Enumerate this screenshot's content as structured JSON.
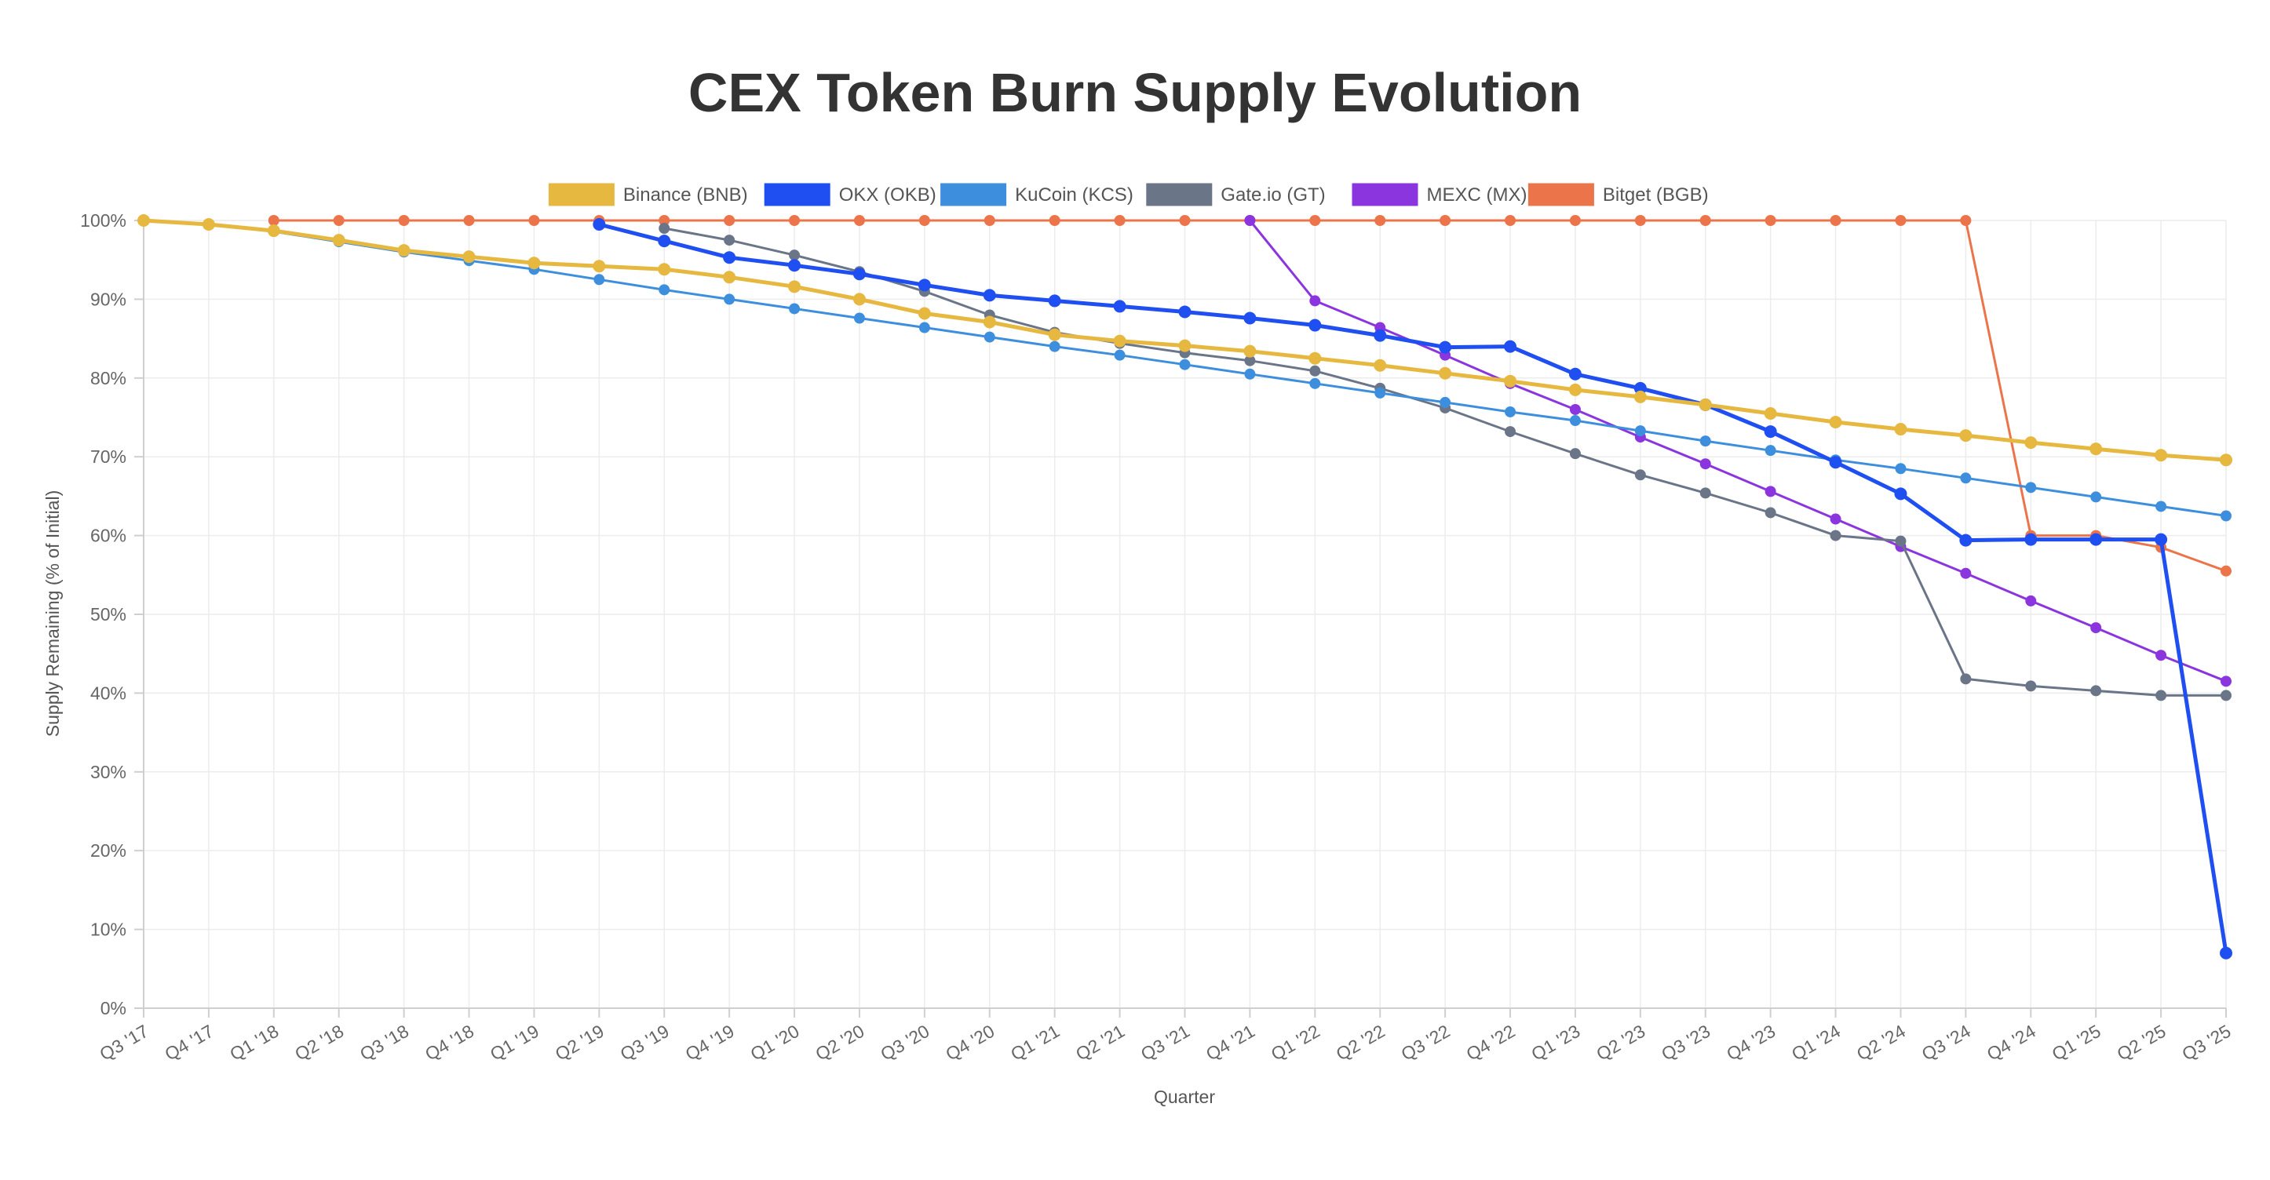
{
  "chart_data": {
    "type": "line",
    "title": "CEX Token Burn Supply Evolution",
    "xlabel": "Quarter",
    "ylabel": "Supply Remaining (% of Initial)",
    "ylim": [
      0,
      100
    ],
    "y_ticks": [
      0,
      10,
      20,
      30,
      40,
      50,
      60,
      70,
      80,
      90,
      100
    ],
    "y_tick_suffix": "%",
    "grid": true,
    "legend_position": "top",
    "categories": [
      "Q3 '17",
      "Q4 '17",
      "Q1 '18",
      "Q2 '18",
      "Q3 '18",
      "Q4 '18",
      "Q1 '19",
      "Q2 '19",
      "Q3 '19",
      "Q4 '19",
      "Q1 '20",
      "Q2 '20",
      "Q3 '20",
      "Q4 '20",
      "Q1 '21",
      "Q2 '21",
      "Q3 '21",
      "Q4 '21",
      "Q1 '22",
      "Q2 '22",
      "Q3 '22",
      "Q4 '22",
      "Q1 '23",
      "Q2 '23",
      "Q3 '23",
      "Q4 '23",
      "Q1 '24",
      "Q2 '24",
      "Q3 '24",
      "Q4 '24",
      "Q1 '25",
      "Q2 '25",
      "Q3 '25"
    ],
    "series": [
      {
        "name": "Binance (BNB)",
        "color": "#e6b840",
        "width": 5,
        "values": [
          100,
          99.5,
          98.7,
          97.5,
          96.2,
          95.4,
          94.6,
          94.2,
          93.8,
          92.8,
          91.6,
          90,
          88.2,
          87.1,
          85.5,
          84.7,
          84.1,
          83.4,
          82.5,
          81.6,
          80.6,
          79.6,
          78.5,
          77.6,
          76.6,
          75.5,
          74.4,
          73.5,
          72.7,
          71.8,
          71,
          70.2,
          69.6
        ]
      },
      {
        "name": "OKX (OKB)",
        "color": "#1f4ff0",
        "width": 5,
        "values": [
          null,
          null,
          null,
          null,
          null,
          null,
          null,
          99.5,
          97.4,
          95.3,
          94.3,
          93.2,
          91.8,
          90.5,
          89.8,
          89.1,
          88.4,
          87.6,
          86.7,
          85.4,
          83.9,
          84,
          80.5,
          78.7,
          76.6,
          73.2,
          69.3,
          65.3,
          59.4,
          59.5,
          59.5,
          59.5,
          7
        ]
      },
      {
        "name": "KuCoin (KCS)",
        "color": "#3d8fde",
        "width": 3,
        "values": [
          100,
          99.5,
          98.6,
          97.3,
          96,
          94.9,
          93.8,
          92.5,
          91.2,
          90,
          88.8,
          87.6,
          86.4,
          85.2,
          84,
          82.9,
          81.7,
          80.5,
          79.3,
          78.1,
          76.9,
          75.7,
          74.6,
          73.3,
          72,
          70.8,
          69.6,
          68.5,
          67.3,
          66.1,
          64.9,
          63.7,
          62.5
        ]
      },
      {
        "name": "Gate.io (GT)",
        "color": "#6b7588",
        "width": 3,
        "values": [
          null,
          null,
          null,
          null,
          null,
          null,
          null,
          null,
          99,
          97.5,
          95.6,
          93.5,
          91,
          88,
          85.8,
          84.4,
          83.2,
          82.2,
          80.9,
          78.7,
          76.2,
          73.2,
          70.4,
          67.7,
          65.4,
          62.9,
          60,
          59.3,
          41.8,
          40.9,
          40.3,
          39.7,
          39.7
        ]
      },
      {
        "name": "MEXC (MX)",
        "color": "#8a35de",
        "width": 3,
        "values": [
          null,
          null,
          null,
          null,
          null,
          null,
          null,
          null,
          null,
          null,
          null,
          null,
          null,
          null,
          null,
          null,
          null,
          100,
          89.8,
          86.4,
          82.9,
          79.3,
          76,
          72.5,
          69.1,
          65.6,
          62.1,
          58.6,
          55.2,
          51.7,
          48.3,
          44.8,
          41.5
        ]
      },
      {
        "name": "Bitget (BGB)",
        "color": "#ec744a",
        "width": 3,
        "values": [
          null,
          null,
          100,
          100,
          100,
          100,
          100,
          100,
          100,
          100,
          100,
          100,
          100,
          100,
          100,
          100,
          100,
          100,
          100,
          100,
          100,
          100,
          100,
          100,
          100,
          100,
          100,
          100,
          100,
          60,
          60,
          58.5,
          55.5
        ]
      }
    ]
  }
}
